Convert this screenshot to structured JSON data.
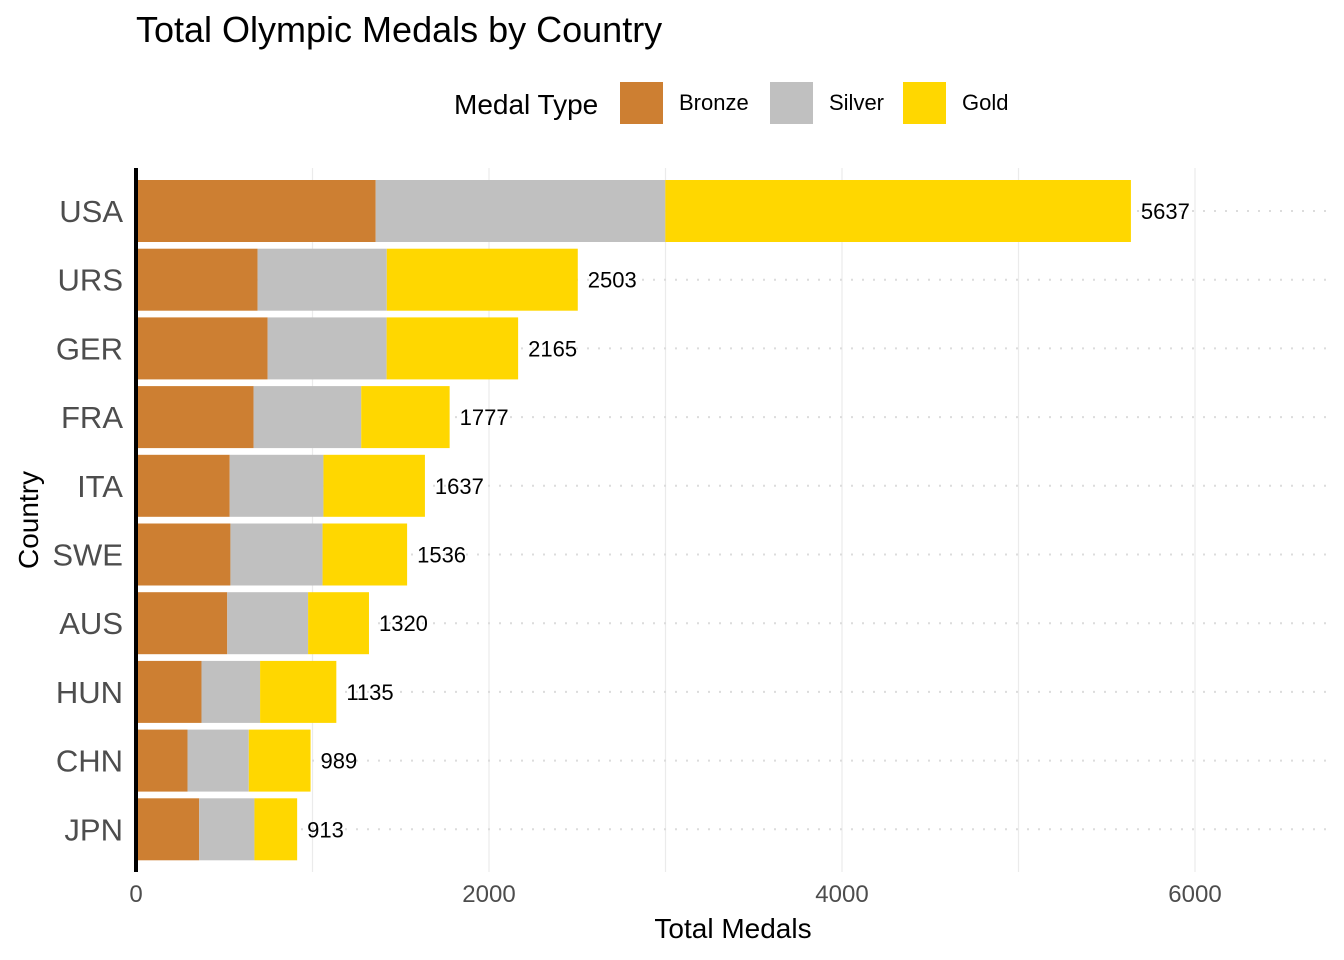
{
  "chart_data": {
    "type": "bar",
    "orientation": "horizontal",
    "stacked": true,
    "title": "Total Olympic Medals by Country",
    "xlabel": "Total Medals",
    "ylabel": "Country",
    "legend_title": "Medal Type",
    "legend_position": "top",
    "xlim": [
      0,
      6700
    ],
    "xticks": [
      0,
      2000,
      4000,
      6000
    ],
    "xtick_labels": [
      "0",
      "2000",
      "4000",
      "6000"
    ],
    "grid": "dotted horizontal + vertical major lines",
    "categories": [
      "USA",
      "URS",
      "GER",
      "FRA",
      "ITA",
      "SWE",
      "AUS",
      "HUN",
      "CHN",
      "JPN"
    ],
    "series": [
      {
        "name": "Bronze",
        "color": "#CD7F32",
        "values": [
          1358,
          689,
          746,
          666,
          531,
          535,
          517,
          371,
          292,
          358
        ]
      },
      {
        "name": "Silver",
        "color": "#C0C0C0",
        "values": [
          1641,
          732,
          674,
          610,
          531,
          522,
          458,
          332,
          347,
          313
        ]
      },
      {
        "name": "Gold",
        "color": "#FFD700",
        "values": [
          2638,
          1082,
          745,
          501,
          575,
          479,
          345,
          432,
          350,
          242
        ]
      }
    ],
    "totals": [
      "5637",
      "2503",
      "2165",
      "1777",
      "1637",
      "1536",
      "1320",
      "1135",
      "989",
      "913"
    ]
  }
}
